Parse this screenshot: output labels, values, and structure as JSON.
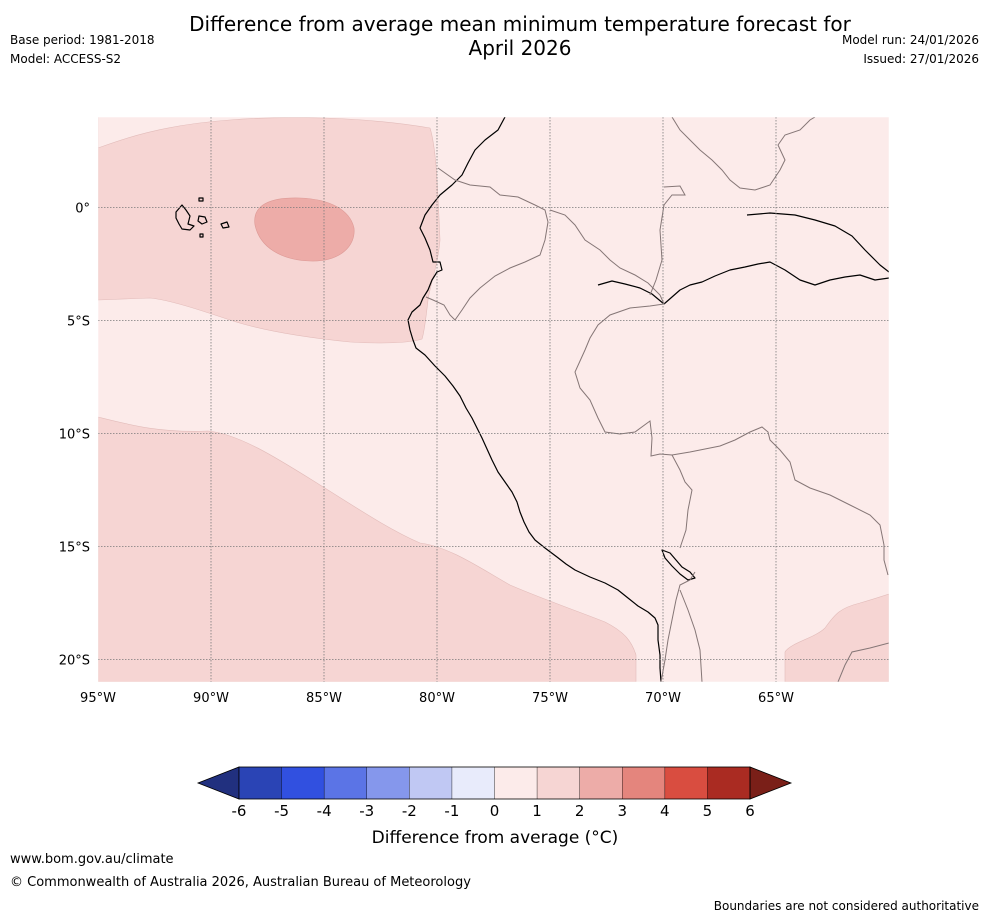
{
  "header": {
    "title_line1": "Difference from average mean minimum temperature forecast for",
    "title_line2": "April 2026",
    "base_period": "Base period: 1981-2018",
    "model": "Model: ACCESS-S2",
    "model_run": "Model run: 24/01/2026",
    "issued": "Issued: 27/01/2026"
  },
  "map": {
    "lon_labels": [
      "95°W",
      "90°W",
      "85°W",
      "80°W",
      "75°W",
      "70°W",
      "65°W"
    ],
    "lat_labels": [
      "0°",
      "5°S",
      "10°S",
      "15°S",
      "20°S"
    ],
    "lon_range": [
      -95,
      -60
    ],
    "lat_range": [
      4,
      -21
    ]
  },
  "colorbar": {
    "ticks": [
      "-6",
      "-5",
      "-4",
      "-3",
      "-2",
      "-1",
      "0",
      "1",
      "2",
      "3",
      "4",
      "5",
      "6"
    ],
    "colors": [
      "#21307f",
      "#2a44b5",
      "#3150e0",
      "#5b74e6",
      "#8597ec",
      "#c0c8f3",
      "#e8ebfb",
      "#fcebea",
      "#f6d5d3",
      "#edaca8",
      "#e4857d",
      "#d94d40",
      "#aa2b22",
      "#7a1f18"
    ],
    "label": "Difference from average (°C)"
  },
  "colors": {
    "bin_0_1": "#fcebea",
    "bin_1_2": "#f6d5d3",
    "bin_2_3": "#edaca8",
    "coast": "#000000",
    "border": "#857676",
    "grid": "#7a7a7a"
  },
  "footer": {
    "url": "www.bom.gov.au/climate",
    "copyright": "© Commonwealth of Australia 2026, Australian Bureau of Meteorology",
    "note": "Boundaries are not considered authoritative"
  }
}
